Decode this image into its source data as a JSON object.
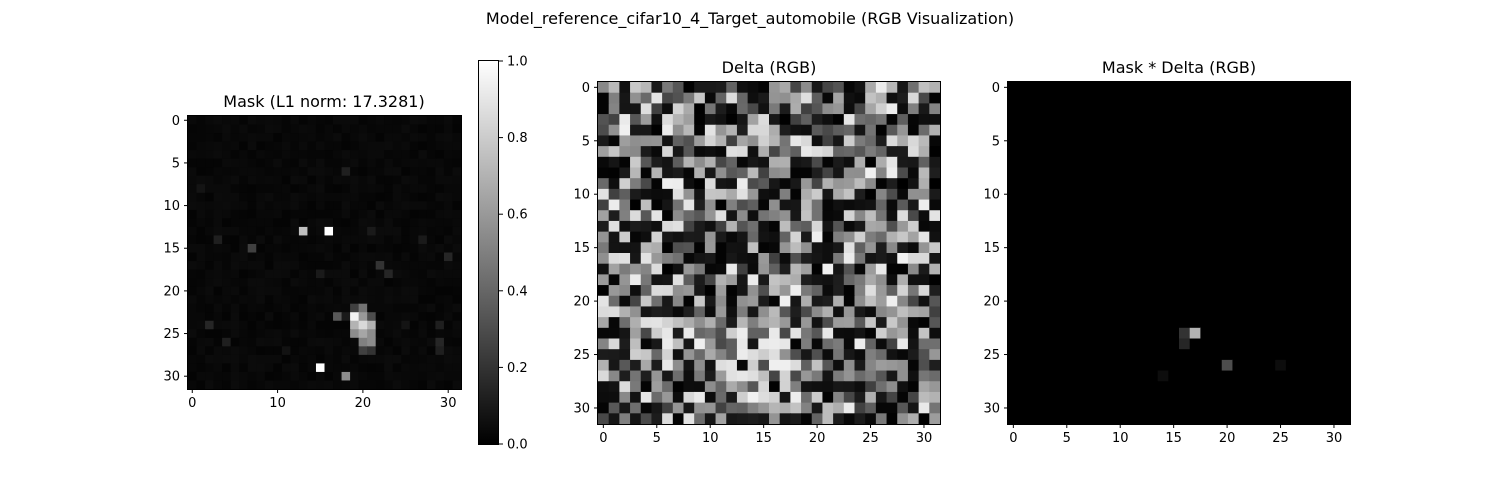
{
  "figure": {
    "suptitle": "Model_reference_cifar10_4_Target_automobile (RGB Visualization)"
  },
  "chart_data": [
    {
      "type": "heatmap",
      "title": "Mask (L1 norm: 17.3281)",
      "colormap": "gray",
      "grid_size": [
        32,
        32
      ],
      "xticks": [
        0,
        10,
        20,
        30
      ],
      "yticks": [
        0,
        5,
        10,
        15,
        20,
        25,
        30
      ],
      "value_range": [
        0,
        1
      ],
      "base_level": 0.03,
      "cells": [
        {
          "x": 13,
          "y": 13,
          "v": 0.75
        },
        {
          "x": 16,
          "y": 13,
          "v": 1.0
        },
        {
          "x": 7,
          "y": 15,
          "v": 0.25
        },
        {
          "x": 3,
          "y": 14,
          "v": 0.12
        },
        {
          "x": 21,
          "y": 13,
          "v": 0.1
        },
        {
          "x": 27,
          "y": 14,
          "v": 0.1
        },
        {
          "x": 30,
          "y": 16,
          "v": 0.15
        },
        {
          "x": 22,
          "y": 17,
          "v": 0.2
        },
        {
          "x": 23,
          "y": 18,
          "v": 0.15
        },
        {
          "x": 15,
          "y": 18,
          "v": 0.1
        },
        {
          "x": 18,
          "y": 6,
          "v": 0.12
        },
        {
          "x": 1,
          "y": 8,
          "v": 0.08
        },
        {
          "x": 19,
          "y": 22,
          "v": 0.25
        },
        {
          "x": 20,
          "y": 22,
          "v": 0.45
        },
        {
          "x": 17,
          "y": 23,
          "v": 0.35
        },
        {
          "x": 18,
          "y": 23,
          "v": 0.1
        },
        {
          "x": 19,
          "y": 23,
          "v": 0.95
        },
        {
          "x": 20,
          "y": 23,
          "v": 0.6
        },
        {
          "x": 21,
          "y": 23,
          "v": 0.3
        },
        {
          "x": 19,
          "y": 24,
          "v": 0.7
        },
        {
          "x": 20,
          "y": 24,
          "v": 0.85
        },
        {
          "x": 21,
          "y": 24,
          "v": 0.7
        },
        {
          "x": 19,
          "y": 25,
          "v": 0.55
        },
        {
          "x": 20,
          "y": 25,
          "v": 0.65
        },
        {
          "x": 21,
          "y": 25,
          "v": 0.55
        },
        {
          "x": 20,
          "y": 26,
          "v": 0.5
        },
        {
          "x": 21,
          "y": 26,
          "v": 0.55
        },
        {
          "x": 20,
          "y": 27,
          "v": 0.25
        },
        {
          "x": 21,
          "y": 27,
          "v": 0.2
        },
        {
          "x": 29,
          "y": 24,
          "v": 0.12
        },
        {
          "x": 29,
          "y": 26,
          "v": 0.15
        },
        {
          "x": 29,
          "y": 27,
          "v": 0.12
        },
        {
          "x": 2,
          "y": 24,
          "v": 0.15
        },
        {
          "x": 4,
          "y": 26,
          "v": 0.12
        },
        {
          "x": 15,
          "y": 29,
          "v": 1.0
        },
        {
          "x": 18,
          "y": 30,
          "v": 0.55
        },
        {
          "x": 25,
          "y": 24,
          "v": 0.08
        },
        {
          "x": 11,
          "y": 27,
          "v": 0.07
        }
      ],
      "colorbar": {
        "range": [
          0,
          1
        ],
        "ticks": [
          "0.0",
          "0.2",
          "0.4",
          "0.6",
          "0.8",
          "1.0"
        ]
      }
    },
    {
      "type": "heatmap",
      "title": "Delta (RGB)",
      "colormap": "gray",
      "grid_size": [
        32,
        32
      ],
      "xticks": [
        0,
        5,
        10,
        15,
        20,
        25,
        30
      ],
      "yticks": [
        0,
        5,
        10,
        15,
        20,
        25,
        30
      ],
      "value_range": [
        0,
        1
      ],
      "pattern": "dense noise, values 0–1",
      "bright_region": {
        "x_from": 13,
        "x_to": 18,
        "y_from": 23,
        "y_to": 29,
        "v": 0.95
      }
    },
    {
      "type": "heatmap",
      "title": "Mask * Delta (RGB)",
      "colormap": "gray",
      "grid_size": [
        32,
        32
      ],
      "xticks": [
        0,
        5,
        10,
        15,
        20,
        25,
        30
      ],
      "yticks": [
        0,
        5,
        10,
        15,
        20,
        25,
        30
      ],
      "value_range": [
        0,
        1
      ],
      "base_level": 0.0,
      "cells": [
        {
          "x": 16,
          "y": 23,
          "v": 0.2
        },
        {
          "x": 17,
          "y": 23,
          "v": 0.7
        },
        {
          "x": 16,
          "y": 24,
          "v": 0.15
        },
        {
          "x": 20,
          "y": 26,
          "v": 0.3
        },
        {
          "x": 14,
          "y": 27,
          "v": 0.05
        },
        {
          "x": 25,
          "y": 26,
          "v": 0.05
        }
      ]
    }
  ]
}
